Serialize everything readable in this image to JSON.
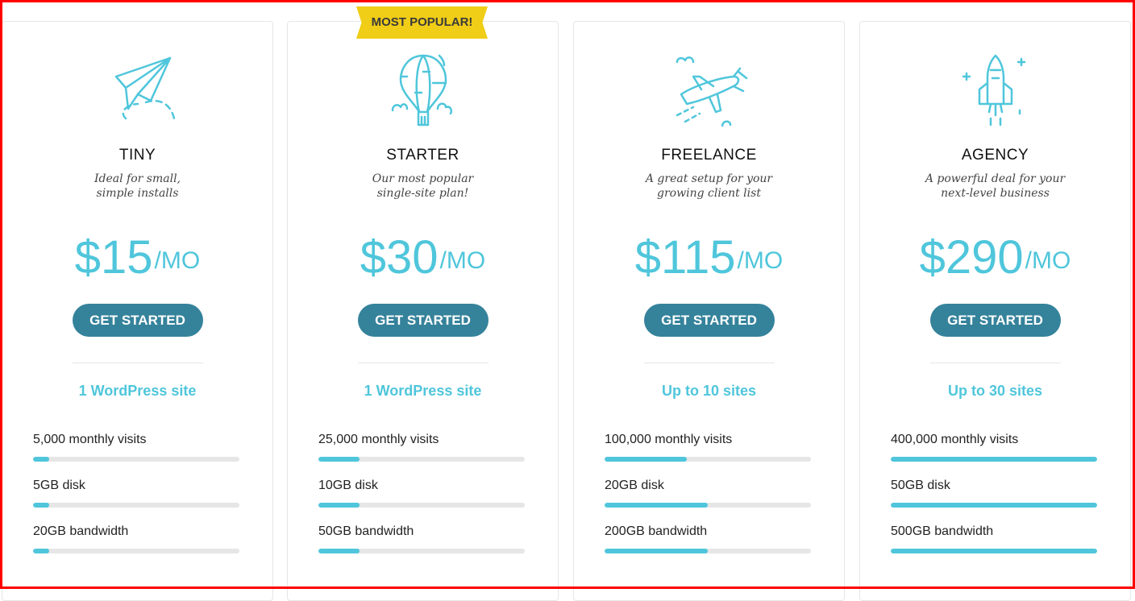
{
  "ribbon": "MOST POPULAR!",
  "accent": "#4fc6db",
  "button_color": "#35829b",
  "plans": [
    {
      "icon": "paper-plane-icon",
      "name": "TINY",
      "tagline": [
        "Ideal for small,",
        "simple installs"
      ],
      "price": "$15",
      "per": "/MO",
      "cta": "GET STARTED",
      "sites": "1 WordPress site",
      "features": [
        {
          "label": "5,000 monthly visits",
          "level": 0.08
        },
        {
          "label": "5GB disk",
          "level": 0.08
        },
        {
          "label": "20GB bandwidth",
          "level": 0.08
        }
      ]
    },
    {
      "icon": "hot-air-balloon-icon",
      "name": "STARTER",
      "tagline": [
        "Our most popular",
        "single-site plan!"
      ],
      "price": "$30",
      "per": "/MO",
      "cta": "GET STARTED",
      "sites": "1 WordPress site",
      "features": [
        {
          "label": "25,000 monthly visits",
          "level": 0.2
        },
        {
          "label": "10GB disk",
          "level": 0.2
        },
        {
          "label": "50GB bandwidth",
          "level": 0.2
        }
      ]
    },
    {
      "icon": "airplane-icon",
      "name": "FREELANCE",
      "tagline": [
        "A great setup for your",
        "growing client list"
      ],
      "price": "$115",
      "per": "/MO",
      "cta": "GET STARTED",
      "sites": "Up to 10 sites",
      "features": [
        {
          "label": "100,000 monthly visits",
          "level": 0.4
        },
        {
          "label": "20GB disk",
          "level": 0.5
        },
        {
          "label": "200GB bandwidth",
          "level": 0.5
        }
      ]
    },
    {
      "icon": "space-shuttle-icon",
      "name": "AGENCY",
      "tagline": [
        "A powerful deal for your",
        "next-level business"
      ],
      "price": "$290",
      "per": "/MO",
      "cta": "GET STARTED",
      "sites": "Up to 30 sites",
      "features": [
        {
          "label": "400,000 monthly visits",
          "level": 1
        },
        {
          "label": "50GB disk",
          "level": 1
        },
        {
          "label": "500GB bandwidth",
          "level": 1
        }
      ]
    }
  ]
}
